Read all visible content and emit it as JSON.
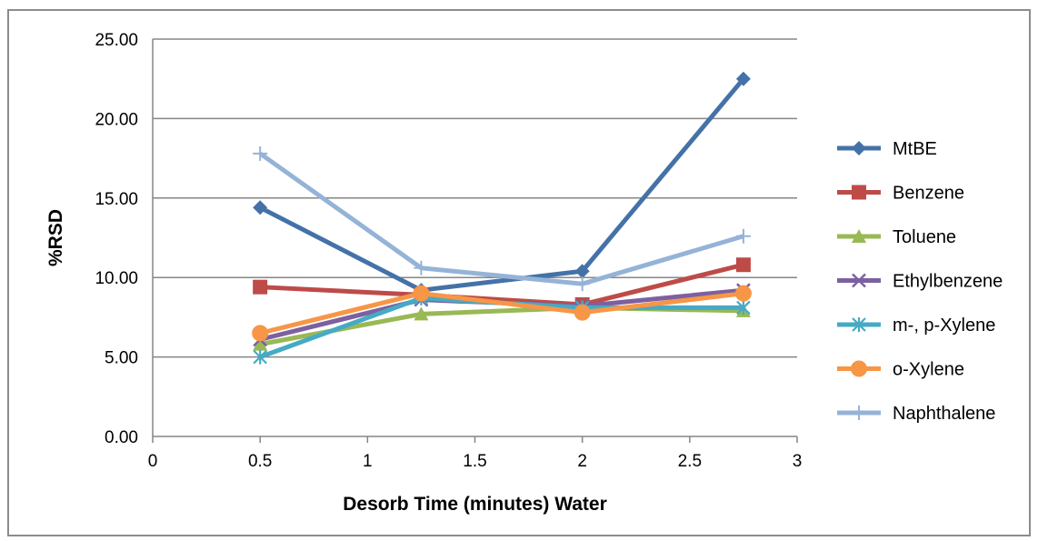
{
  "chart_data": {
    "type": "line",
    "title": "",
    "xlabel": "Desorb Time (minutes) Water",
    "ylabel": "%RSD",
    "xlim": [
      0,
      3
    ],
    "ylim": [
      0,
      25
    ],
    "x_ticks": [
      "0",
      "0.5",
      "1",
      "1.5",
      "2",
      "2.5",
      "3"
    ],
    "y_ticks": [
      "0.00",
      "5.00",
      "10.00",
      "15.00",
      "20.00",
      "25.00"
    ],
    "grid": "horizontal",
    "legend_position": "right",
    "x": [
      0.5,
      1.25,
      2,
      2.75
    ],
    "series": [
      {
        "name": "MtBE",
        "color": "#4472A8",
        "marker": "diamond",
        "values": [
          14.4,
          9.2,
          10.4,
          22.5
        ]
      },
      {
        "name": "Benzene",
        "color": "#BE4B48",
        "marker": "square",
        "values": [
          9.4,
          8.9,
          8.3,
          10.8
        ]
      },
      {
        "name": "Toluene",
        "color": "#98B954",
        "marker": "triangle",
        "values": [
          5.8,
          7.7,
          8.1,
          7.9
        ]
      },
      {
        "name": "Ethylbenzene",
        "color": "#7D60A0",
        "marker": "x",
        "values": [
          6.1,
          8.6,
          8.2,
          9.2
        ]
      },
      {
        "name": "m-, p-Xylene",
        "color": "#46AAC5",
        "marker": "star",
        "values": [
          5.0,
          8.7,
          8.1,
          8.1
        ]
      },
      {
        "name": "o-Xylene",
        "color": "#F79646",
        "marker": "circle",
        "values": [
          6.5,
          9.0,
          7.8,
          9.0
        ]
      },
      {
        "name": "Naphthalene",
        "color": "#95B3D7",
        "marker": "plus",
        "values": [
          17.8,
          10.6,
          9.6,
          12.6
        ]
      }
    ]
  }
}
